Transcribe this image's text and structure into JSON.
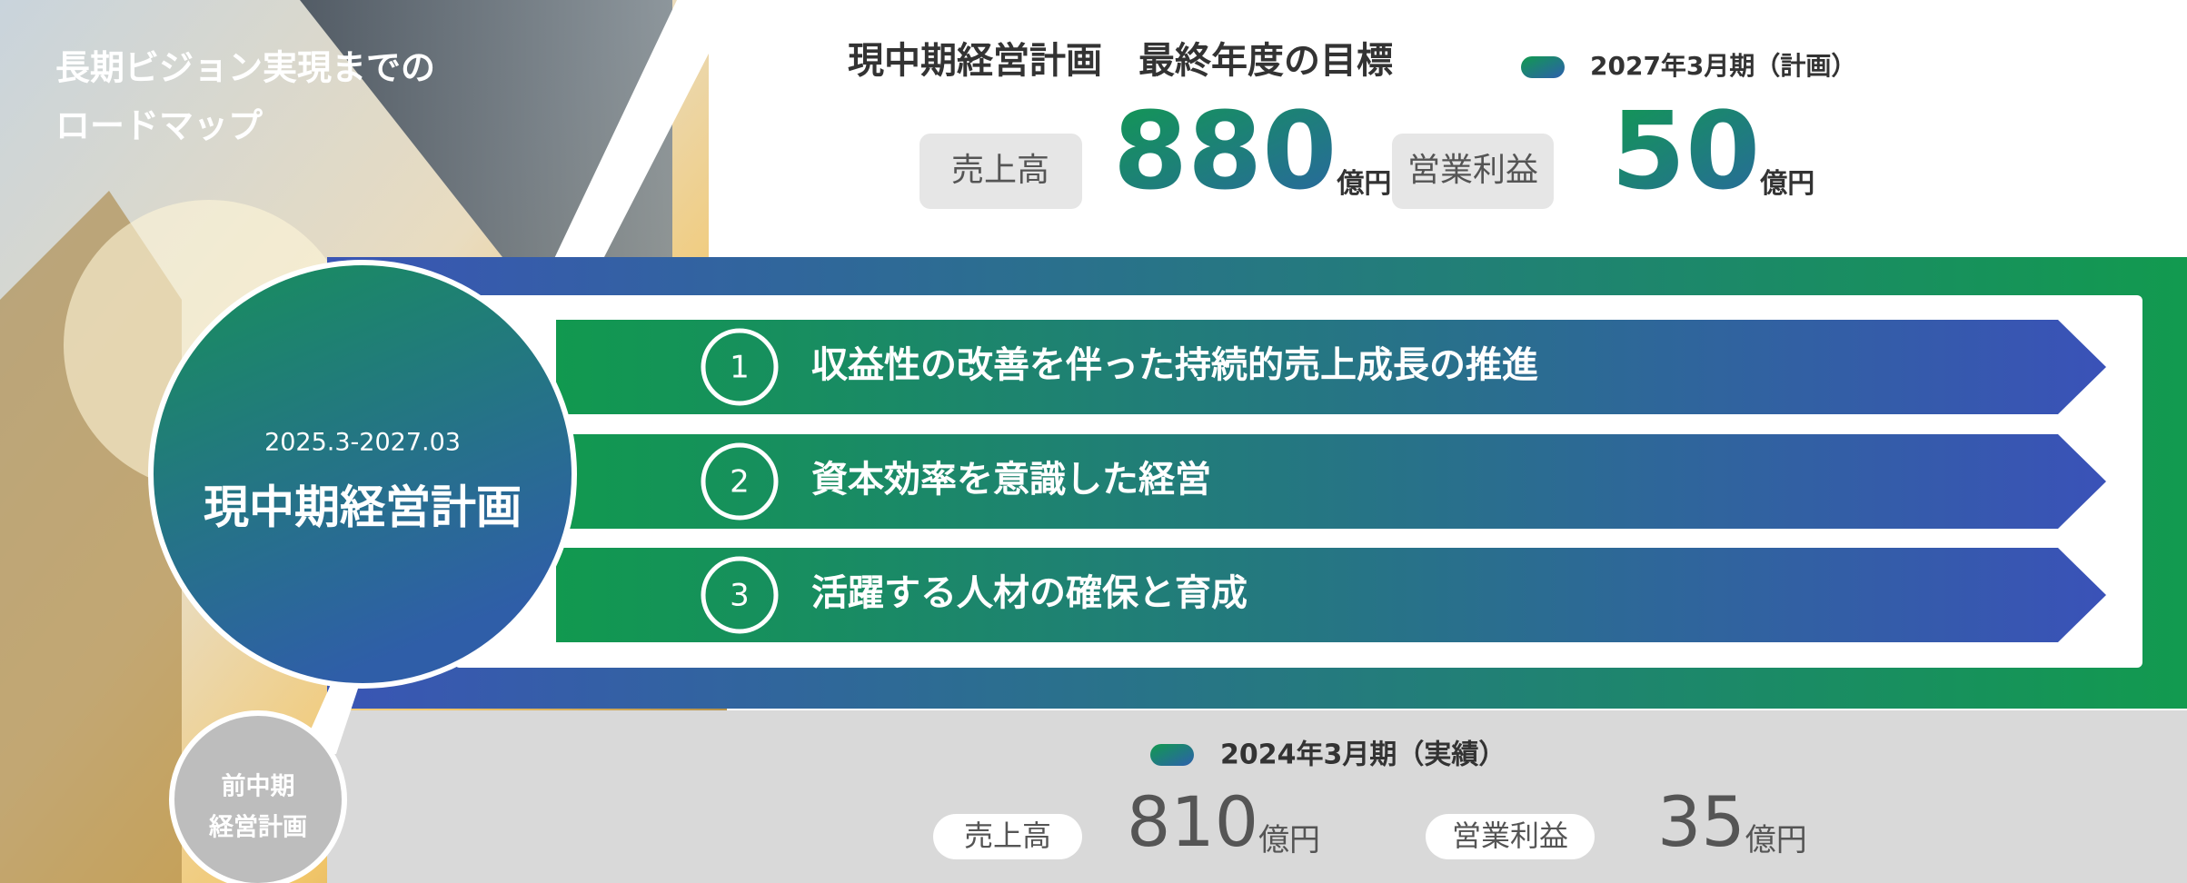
{
  "header": {
    "title_lines": [
      "長期ビジョン実現までの",
      "ロードマップ"
    ]
  },
  "target": {
    "title": "現中期経営計画　最終年度の目標",
    "legend": "2027年3月期（計画）",
    "metrics": [
      {
        "label": "売上高",
        "value": 880,
        "unit": "億円"
      },
      {
        "label": "営業利益",
        "value": 50,
        "unit": "億円"
      }
    ]
  },
  "current_plan": {
    "period": "2025.3-2027.03",
    "name": "現中期経営計画"
  },
  "themes": [
    {
      "number": 1,
      "text": "収益性の改善を伴った持続的売上成長の推進"
    },
    {
      "number": 2,
      "text": "資本効率を意識した経営"
    },
    {
      "number": 3,
      "text": "活躍する人材の確保と育成"
    }
  ],
  "previous": {
    "name_lines": [
      "前中期",
      "経営計画"
    ],
    "legend": "2024年3月期（実績）",
    "metrics": [
      {
        "label": "売上高",
        "value": 810,
        "unit": "億円"
      },
      {
        "label": "営業利益",
        "value": 35,
        "unit": "億円"
      }
    ]
  }
}
